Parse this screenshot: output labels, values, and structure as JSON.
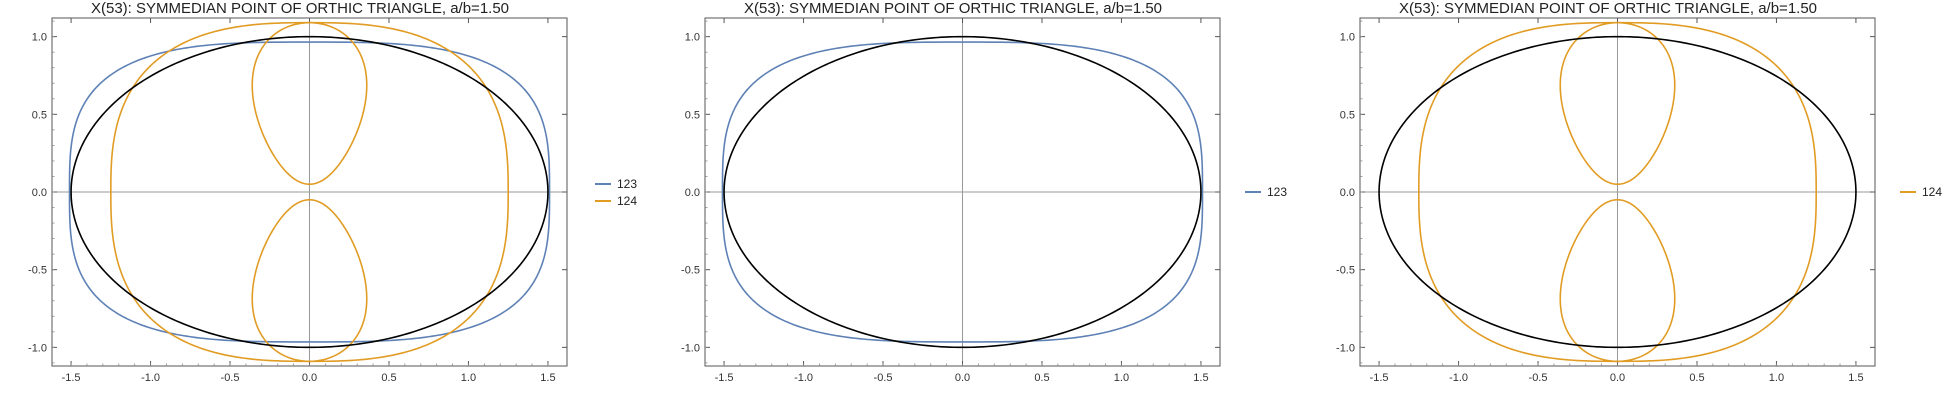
{
  "chart_data": [
    {
      "type": "line",
      "title": "X(53): SYMMEDIAN POINT OF ORTHIC TRIANGLE, a/b=1.50",
      "xlim": [
        -1.62,
        1.62
      ],
      "ylim": [
        -1.12,
        1.12
      ],
      "x_ticks": [
        "-1.5",
        "-1.0",
        "-0.5",
        "0.0",
        "0.5",
        "1.0",
        "1.5"
      ],
      "y_ticks": [
        "-1.0",
        "-0.5",
        "0.0",
        "0.5",
        "1.0"
      ],
      "grid": false,
      "legend_position": "right",
      "reference_ellipse": {
        "a": 1.5,
        "b": 1.0,
        "color": "#000000"
      },
      "series": [
        {
          "name": "123",
          "color": "#5E81B5",
          "shape": "superellipse",
          "a": 1.51,
          "b": 0.965
        },
        {
          "name": "124",
          "color": "#E19C24",
          "shape": "outer-loop-with-lobes",
          "a": 1.25,
          "b": 1.09,
          "lobe_near": 0.05,
          "lobe_far": 1.09,
          "lobe_half_width": 0.35
        }
      ]
    },
    {
      "type": "line",
      "title": "X(53): SYMMEDIAN POINT OF ORTHIC TRIANGLE, a/b=1.50",
      "xlim": [
        -1.62,
        1.62
      ],
      "ylim": [
        -1.12,
        1.12
      ],
      "x_ticks": [
        "-1.5",
        "-1.0",
        "-0.5",
        "0.0",
        "0.5",
        "1.0",
        "1.5"
      ],
      "y_ticks": [
        "-1.0",
        "-0.5",
        "0.0",
        "0.5",
        "1.0"
      ],
      "grid": false,
      "legend_position": "right",
      "reference_ellipse": {
        "a": 1.5,
        "b": 1.0,
        "color": "#000000"
      },
      "series": [
        {
          "name": "123",
          "color": "#5E81B5",
          "shape": "superellipse",
          "a": 1.51,
          "b": 0.965
        }
      ]
    },
    {
      "type": "line",
      "title": "X(53): SYMMEDIAN POINT OF ORTHIC TRIANGLE, a/b=1.50",
      "xlim": [
        -1.62,
        1.62
      ],
      "ylim": [
        -1.12,
        1.12
      ],
      "x_ticks": [
        "-1.5",
        "-1.0",
        "-0.5",
        "0.0",
        "0.5",
        "1.0",
        "1.5"
      ],
      "y_ticks": [
        "-1.0",
        "-0.5",
        "0.0",
        "0.5",
        "1.0"
      ],
      "grid": false,
      "legend_position": "right",
      "reference_ellipse": {
        "a": 1.5,
        "b": 1.0,
        "color": "#000000"
      },
      "series": [
        {
          "name": "124",
          "color": "#E19C24",
          "shape": "outer-loop-with-lobes",
          "a": 1.25,
          "b": 1.09,
          "lobe_near": 0.05,
          "lobe_far": 1.09,
          "lobe_half_width": 0.35
        }
      ]
    }
  ]
}
